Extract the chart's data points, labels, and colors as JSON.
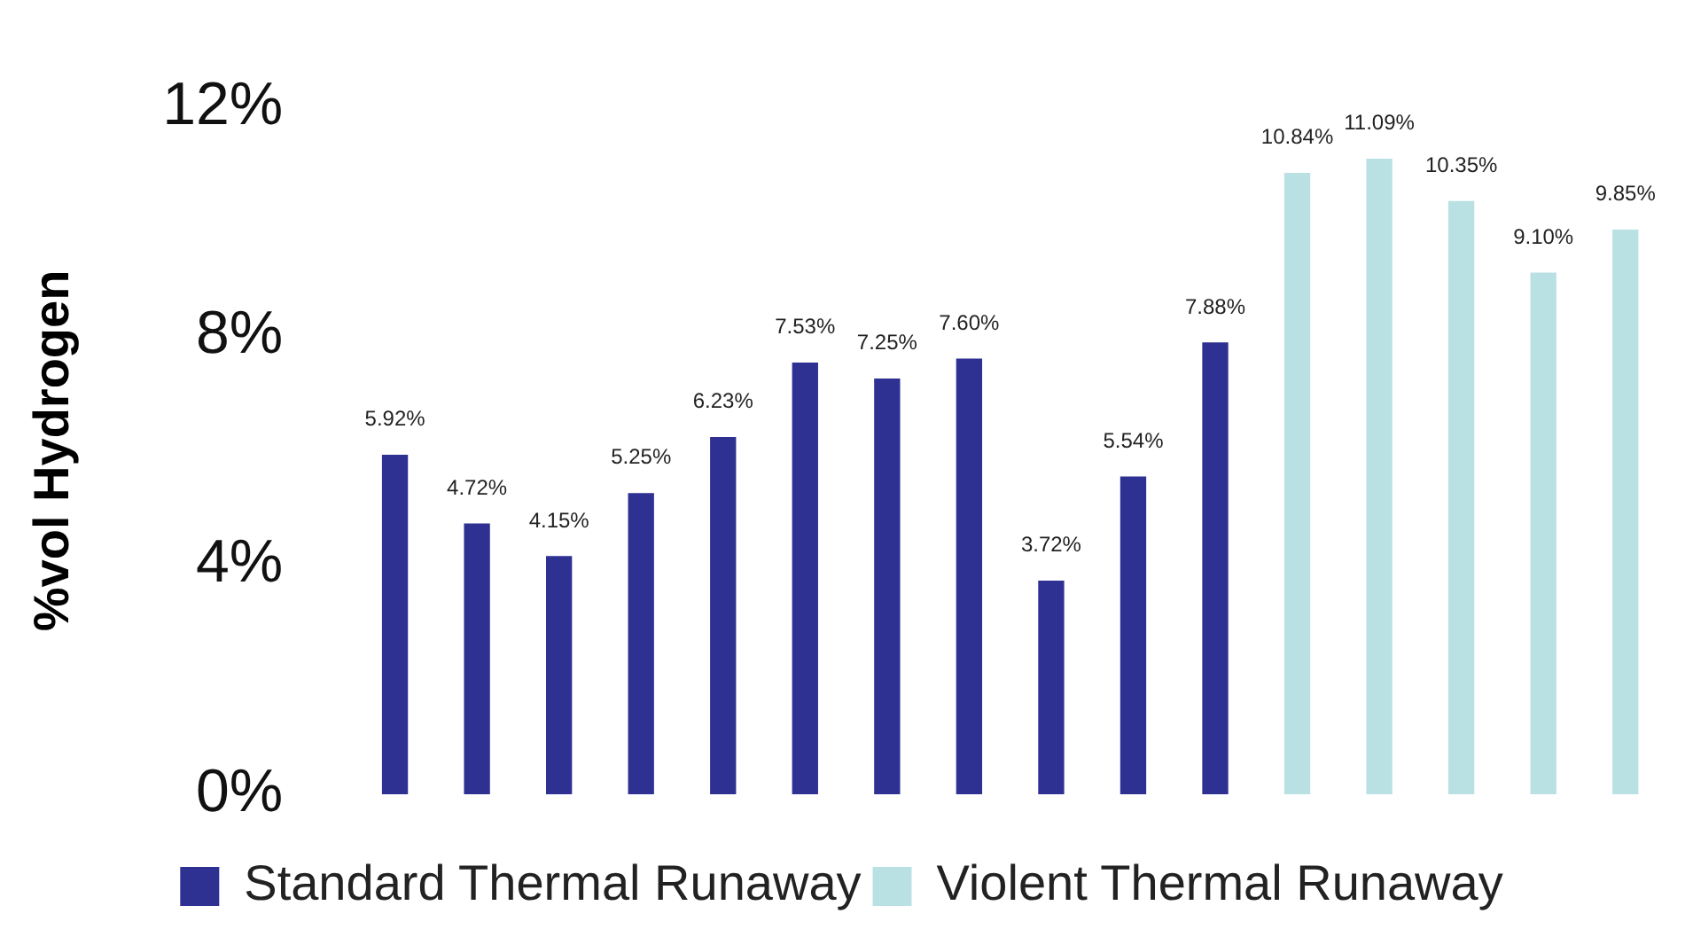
{
  "chart_data": {
    "type": "bar",
    "ylabel": "%vol Hydrogen",
    "categories": [
      null,
      null,
      null,
      null,
      null,
      null,
      null,
      null,
      null,
      null,
      null,
      null,
      null,
      null,
      null,
      null
    ],
    "series": [
      {
        "name": "Standard Thermal Runaway",
        "color": "#2e3192",
        "values": [
          5.92,
          4.72,
          4.15,
          5.25,
          6.23,
          7.53,
          7.25,
          7.6,
          3.72,
          5.54,
          7.88,
          null,
          null,
          null,
          null,
          null
        ],
        "value_labels": [
          "5.92%",
          "4.72%",
          "4.15%",
          "5.25%",
          "6.23%",
          "7.53%",
          "7.25%",
          "7.60%",
          "3.72%",
          "5.54%",
          "7.88%",
          null,
          null,
          null,
          null,
          null
        ]
      },
      {
        "name": "Violent Thermal Runaway",
        "color": "#b9e1e4",
        "values": [
          null,
          null,
          null,
          null,
          null,
          null,
          null,
          null,
          null,
          null,
          null,
          10.84,
          11.09,
          10.35,
          9.1,
          9.85
        ],
        "value_labels": [
          null,
          null,
          null,
          null,
          null,
          null,
          null,
          null,
          null,
          null,
          null,
          "10.84%",
          "11.09%",
          "10.35%",
          "9.10%",
          "9.85%"
        ]
      }
    ],
    "ylim": [
      0,
      12
    ],
    "yticks": [
      {
        "value": 0,
        "label": "0%"
      },
      {
        "value": 4,
        "label": "4%"
      },
      {
        "value": 8,
        "label": "8%"
      },
      {
        "value": 12,
        "label": "12%"
      }
    ],
    "stacked": true,
    "grid": false,
    "legend": "bottom"
  }
}
